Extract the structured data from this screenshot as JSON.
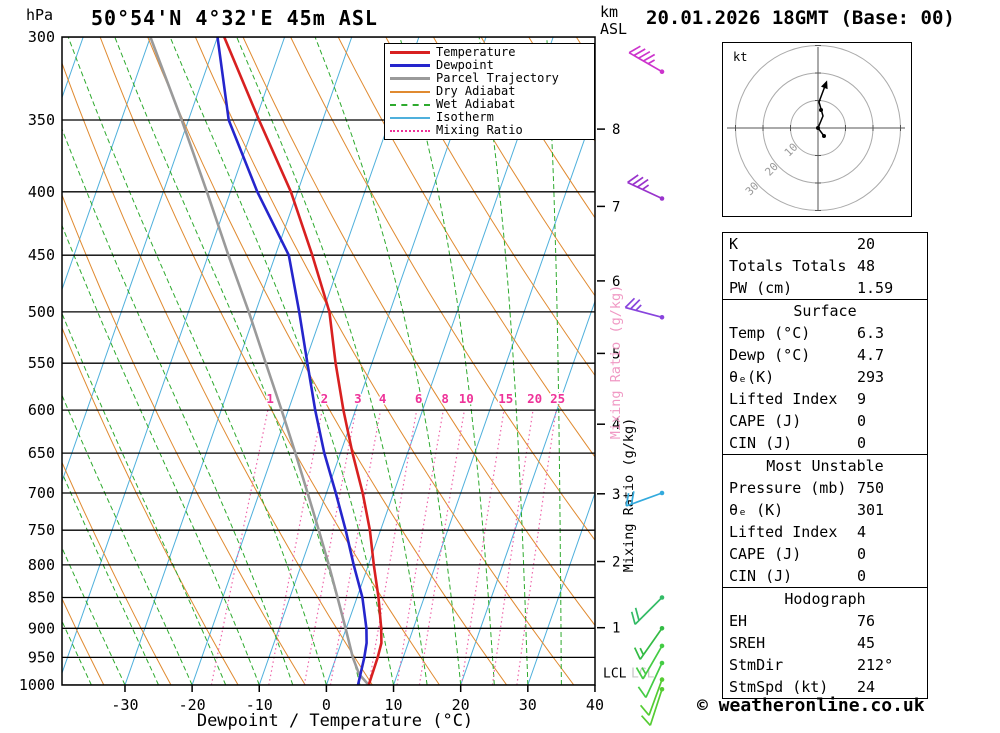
{
  "header": {
    "pressure_unit": "hPa",
    "title": "50°54'N 4°32'E 45m ASL",
    "km_label": "km",
    "asl_label": "ASL",
    "datetime": "20.01.2026 18GMT (Base: 00)"
  },
  "legend": [
    {
      "label": "Temperature",
      "color": "#d82020",
      "style": "solid",
      "weight": 3
    },
    {
      "label": "Dewpoint",
      "color": "#2525cc",
      "style": "solid",
      "weight": 3
    },
    {
      "label": "Parcel Trajectory",
      "color": "#9a9a9a",
      "style": "solid",
      "weight": 3
    },
    {
      "label": "Dry Adiabat",
      "color": "#e08a30",
      "style": "solid",
      "weight": 2
    },
    {
      "label": "Wet Adiabat",
      "color": "#2eaa2e",
      "style": "dashed",
      "weight": 2
    },
    {
      "label": "Isotherm",
      "color": "#4fb0dc",
      "style": "solid",
      "weight": 2
    },
    {
      "label": "Mixing Ratio",
      "color": "#ee3399",
      "style": "dotted",
      "weight": 2
    }
  ],
  "hodograph": {
    "unit": "kt",
    "ring_labels": [
      "10",
      "20",
      "30"
    ],
    "trace": [
      [
        6,
        8
      ],
      [
        0,
        0
      ],
      [
        5,
        -12
      ],
      [
        1,
        -26
      ],
      [
        7,
        -42
      ]
    ],
    "dots": [
      [
        6,
        8
      ],
      [
        0,
        0
      ],
      [
        3,
        -18
      ]
    ]
  },
  "panels": [
    {
      "rows": [
        {
          "label": "K",
          "value": "20"
        },
        {
          "label": "Totals Totals",
          "value": "48"
        },
        {
          "label": "PW (cm)",
          "value": "1.59"
        }
      ]
    },
    {
      "rows": [
        {
          "header": "Surface"
        },
        {
          "label": "Temp (°C)",
          "value": "6.3"
        },
        {
          "label": "Dewp (°C)",
          "value": "4.7"
        },
        {
          "label": "θₑ(K)",
          "value": "293"
        },
        {
          "label": "Lifted Index",
          "value": "9"
        },
        {
          "label": "CAPE (J)",
          "value": "0"
        },
        {
          "label": "CIN (J)",
          "value": "0"
        }
      ]
    },
    {
      "rows": [
        {
          "header": "Most Unstable"
        },
        {
          "label": "Pressure (mb)",
          "value": "750"
        },
        {
          "label": "θₑ (K)",
          "value": "301"
        },
        {
          "label": "Lifted Index",
          "value": "4"
        },
        {
          "label": "CAPE (J)",
          "value": "0"
        },
        {
          "label": "CIN (J)",
          "value": "0"
        }
      ]
    },
    {
      "rows": [
        {
          "header": "Hodograph"
        },
        {
          "label": "EH",
          "value": "76"
        },
        {
          "label": "SREH",
          "value": "45"
        },
        {
          "label": "StmDir",
          "value": "212°"
        },
        {
          "label": "StmSpd (kt)",
          "value": "24"
        }
      ]
    }
  ],
  "footer": {
    "copyright": "© weatheronline.co.uk"
  },
  "chart_data": {
    "type": "line",
    "subtype": "skew-t-log-p",
    "title": "50°54'N 4°32'E 45m ASL",
    "xlabel": "Dewpoint / Temperature (°C)",
    "xlim": [
      -39,
      40
    ],
    "pressure_ticks": [
      300,
      350,
      400,
      450,
      500,
      550,
      600,
      650,
      700,
      750,
      800,
      850,
      900,
      950,
      1000
    ],
    "temp_ticks": [
      -30,
      -20,
      -10,
      0,
      10,
      20,
      30,
      40
    ],
    "km_ticks": [
      {
        "km": "8",
        "p": 356
      },
      {
        "km": "7",
        "p": 411
      },
      {
        "km": "6",
        "p": 472
      },
      {
        "km": "5",
        "p": 540
      },
      {
        "km": "4",
        "p": 616
      },
      {
        "km": "3",
        "p": 701
      },
      {
        "km": "2",
        "p": 795
      },
      {
        "km": "1",
        "p": 899
      }
    ],
    "mixing_ratio_values": [
      1,
      2,
      3,
      4,
      6,
      8,
      10,
      15,
      20,
      25
    ],
    "mixing_axis_label": "Mixing Ratio (g/kg)",
    "lcl_label": "LCL",
    "lcl_pressure": 977,
    "series": [
      {
        "name": "Parcel Trajectory",
        "color": "#9a9a9a",
        "width": 2.6,
        "points": [
          [
            1000,
            6.3
          ],
          [
            980,
            4.3
          ],
          [
            950,
            2.5
          ],
          [
            900,
            -0.1
          ],
          [
            850,
            -2.9
          ],
          [
            800,
            -5.9
          ],
          [
            750,
            -9.2
          ],
          [
            700,
            -12.8
          ],
          [
            650,
            -16.7
          ],
          [
            600,
            -21.0
          ],
          [
            550,
            -25.8
          ],
          [
            500,
            -31.0
          ],
          [
            450,
            -37.0
          ],
          [
            400,
            -43.5
          ],
          [
            350,
            -51.0
          ],
          [
            300,
            -60.0
          ]
        ]
      },
      {
        "name": "Dewpoint",
        "color": "#2525cc",
        "width": 2.6,
        "points": [
          [
            1000,
            4.7
          ],
          [
            950,
            4.2
          ],
          [
            925,
            3.8
          ],
          [
            900,
            3.0
          ],
          [
            850,
            0.8
          ],
          [
            800,
            -2.2
          ],
          [
            750,
            -5.2
          ],
          [
            700,
            -8.6
          ],
          [
            650,
            -12.4
          ],
          [
            600,
            -16.0
          ],
          [
            550,
            -19.6
          ],
          [
            500,
            -23.5
          ],
          [
            450,
            -28.0
          ],
          [
            400,
            -36.0
          ],
          [
            350,
            -44.0
          ],
          [
            300,
            -50.0
          ]
        ]
      },
      {
        "name": "Temperature",
        "color": "#d82020",
        "width": 2.6,
        "points": [
          [
            1000,
            6.3
          ],
          [
            950,
            6.2
          ],
          [
            925,
            6.0
          ],
          [
            900,
            5.2
          ],
          [
            850,
            3.2
          ],
          [
            800,
            0.8
          ],
          [
            750,
            -1.6
          ],
          [
            700,
            -4.6
          ],
          [
            650,
            -8.2
          ],
          [
            600,
            -11.8
          ],
          [
            550,
            -15.4
          ],
          [
            500,
            -19.0
          ],
          [
            450,
            -24.5
          ],
          [
            400,
            -31.0
          ],
          [
            350,
            -39.5
          ],
          [
            300,
            -49.0
          ]
        ]
      }
    ],
    "wind_barbs": [
      {
        "p": 320,
        "dir": 300,
        "spd": 45,
        "color": "#cc33cc"
      },
      {
        "p": 405,
        "dir": 295,
        "spd": 35,
        "color": "#9933cc"
      },
      {
        "p": 505,
        "dir": 285,
        "spd": 25,
        "color": "#8844dd"
      },
      {
        "p": 700,
        "dir": 250,
        "spd": 20,
        "color": "#33aadd"
      },
      {
        "p": 850,
        "dir": 225,
        "spd": 20,
        "color": "#33bb66"
      },
      {
        "p": 900,
        "dir": 215,
        "spd": 15,
        "color": "#33bb44"
      },
      {
        "p": 930,
        "dir": 210,
        "spd": 15,
        "color": "#44cc44"
      },
      {
        "p": 960,
        "dir": 205,
        "spd": 12,
        "color": "#44cc44"
      },
      {
        "p": 990,
        "dir": 200,
        "spd": 10,
        "color": "#55cc33"
      },
      {
        "p": 1008,
        "dir": 198,
        "spd": 10,
        "color": "#55cc33"
      }
    ],
    "style": {
      "isotherm": "#4fb0dc",
      "dry_adiabat": "#e08a30",
      "wet_adiabat": "#2eaa2e",
      "mixing_ratio": "#ee66aa",
      "mixing_ratio_label": "#ee3399",
      "mixing_axis_label_pink": "#f099c4",
      "frame": "#000000"
    }
  }
}
